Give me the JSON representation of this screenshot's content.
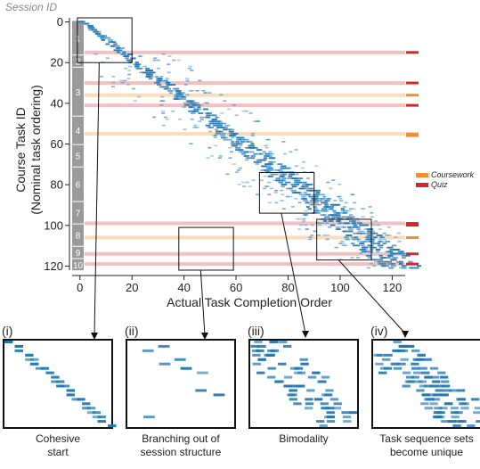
{
  "chart_data": {
    "type": "heatmap",
    "title": "",
    "xlabel": "Actual Task Completion Order",
    "ylabel_lines": [
      "Course Task ID",
      "(Nominal task ordering)"
    ],
    "xlim": [
      -3,
      125
    ],
    "ylim": [
      -2,
      122
    ],
    "x_ticks": [
      0,
      20,
      40,
      60,
      80,
      100,
      120
    ],
    "y_ticks": [
      0,
      20,
      40,
      60,
      80,
      100,
      120
    ],
    "session_bar": {
      "title": "Session ID",
      "sessions": [
        {
          "id": "1",
          "start": 0,
          "end": 17
        },
        {
          "id": "2",
          "start": 17,
          "end": 23
        },
        {
          "id": "3",
          "start": 23,
          "end": 47
        },
        {
          "id": "4",
          "start": 47,
          "end": 61
        },
        {
          "id": "5",
          "start": 61,
          "end": 72
        },
        {
          "id": "6",
          "start": 72,
          "end": 89
        },
        {
          "id": "7",
          "start": 89,
          "end": 100
        },
        {
          "id": "8",
          "start": 100,
          "end": 111
        },
        {
          "id": "9",
          "start": 111,
          "end": 117
        },
        {
          "id": "10",
          "start": 117,
          "end": 123
        }
      ]
    },
    "legend": [
      {
        "label": "Coursework",
        "color": "#f28e2b"
      },
      {
        "label": "Quiz",
        "color": "#d62728"
      }
    ],
    "highlighted_tasks": [
      {
        "task": 15,
        "kind": "Quiz"
      },
      {
        "task": 30,
        "kind": "Quiz"
      },
      {
        "task": 36,
        "kind": "Coursework"
      },
      {
        "task": 41,
        "kind": "Quiz"
      },
      {
        "task": 55,
        "kind": "Coursework"
      },
      {
        "task": 99,
        "kind": "Quiz"
      },
      {
        "task": 106,
        "kind": "Coursework"
      },
      {
        "task": 114,
        "kind": "Quiz"
      },
      {
        "task": 119,
        "kind": "Quiz"
      }
    ],
    "zoom_regions": [
      {
        "label": "(i)",
        "caption": [
          "Cohesive",
          "start"
        ],
        "x_range": [
          -1,
          20
        ],
        "y_range": [
          -2,
          20
        ]
      },
      {
        "label": "(ii)",
        "caption": [
          "Branching out of",
          "session structure"
        ],
        "x_range": [
          38,
          59
        ],
        "y_range": [
          101,
          122
        ]
      },
      {
        "label": "(iii)",
        "caption": [
          "Bimodality"
        ],
        "x_range": [
          69,
          90
        ],
        "y_range": [
          74,
          94
        ]
      },
      {
        "label": "(iv)",
        "caption": [
          "Task sequence sets",
          "become unique"
        ],
        "x_range": [
          91,
          112
        ],
        "y_range": [
          97,
          117
        ]
      }
    ],
    "colors": {
      "cell": "#1f77b4",
      "coursework_band": "#f7b267",
      "quiz_band": "#e57373",
      "session_bar": "#9a9a9a"
    }
  }
}
